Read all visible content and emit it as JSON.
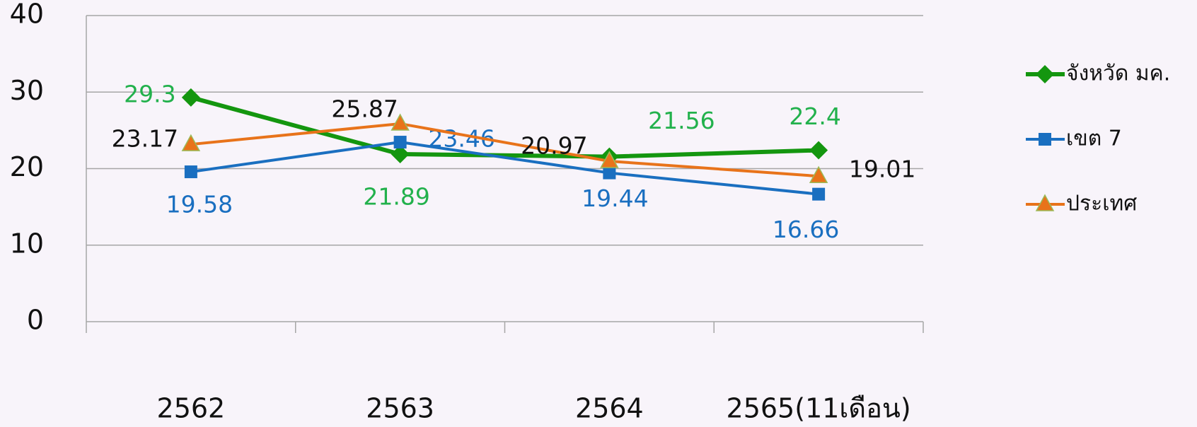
{
  "chart_data": {
    "type": "line",
    "categories": [
      "2562",
      "2563",
      "2564",
      "2565(11เดือน)"
    ],
    "series": [
      {
        "name": "จังหวัด มค.",
        "color": "#14960f",
        "label_color": "#22b14c",
        "marker": "diamond",
        "values": [
          29.3,
          21.89,
          21.56,
          22.4
        ]
      },
      {
        "name": "เขต 7",
        "color": "#1a6fc0",
        "label_color": "#1a6fc0",
        "marker": "square",
        "values": [
          19.58,
          23.46,
          19.44,
          16.66
        ]
      },
      {
        "name": "ประเทศ",
        "color": "#e8731a",
        "label_color": "#111111",
        "marker": "triangle",
        "values": [
          23.17,
          25.87,
          20.97,
          19.01
        ]
      }
    ],
    "ylim": [
      0,
      40
    ],
    "yticks": [
      0,
      10,
      20,
      30,
      40
    ],
    "grid": true,
    "legend": "right"
  }
}
